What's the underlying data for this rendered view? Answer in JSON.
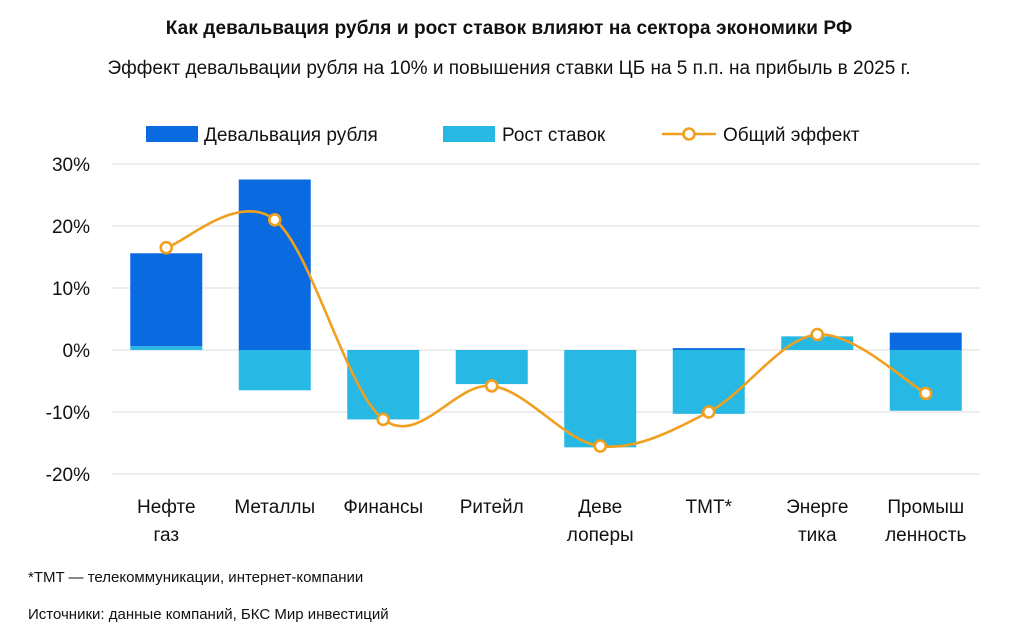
{
  "chart_data": {
    "type": "bar",
    "title": "Как девальвация рубля и рост ставок влияют на сектора экономики РФ",
    "subtitle": "Эффект девальвации рубля на 10% и повышения ставки ЦБ на 5 п.п. на прибыль в 2025 г.",
    "categories": [
      [
        "Нефте",
        "газ"
      ],
      [
        "Металлы"
      ],
      [
        "Финансы"
      ],
      [
        "Ритейл"
      ],
      [
        "Деве",
        "лоперы"
      ],
      [
        "ТМТ*"
      ],
      [
        "Энерге",
        "тика"
      ],
      [
        "Промыш",
        "ленность"
      ]
    ],
    "series": [
      {
        "name": "Девальвация рубля",
        "kind": "bar",
        "color": "#0a6be0",
        "values": [
          15.0,
          27.5,
          0,
          0,
          0,
          0.3,
          0,
          2.8
        ]
      },
      {
        "name": "Рост ставок",
        "kind": "bar",
        "color": "#27b9e3",
        "values": [
          0.6,
          -6.5,
          -11.2,
          -5.5,
          -15.7,
          -10.3,
          2.2,
          -9.8
        ]
      },
      {
        "name": "Общий эффект",
        "kind": "line",
        "color": "#f0a01e",
        "values": [
          16.5,
          21.0,
          -11.2,
          -5.8,
          -15.5,
          -10.0,
          2.5,
          -7.0
        ]
      }
    ],
    "ylim": [
      -20,
      30
    ],
    "yticks": [
      30,
      20,
      10,
      0,
      -10,
      -20
    ],
    "ytick_labels": [
      "30%",
      "20%",
      "10%",
      "0%",
      "-10%",
      "-20%"
    ],
    "grid": true,
    "legend_position": "top-center",
    "xlabel": "",
    "ylabel": ""
  },
  "footnotes": {
    "tmt": "*TMT — телекоммуникации, интернет-компании",
    "sources": "Источники: данные компаний, БКС Мир инвестиций"
  }
}
